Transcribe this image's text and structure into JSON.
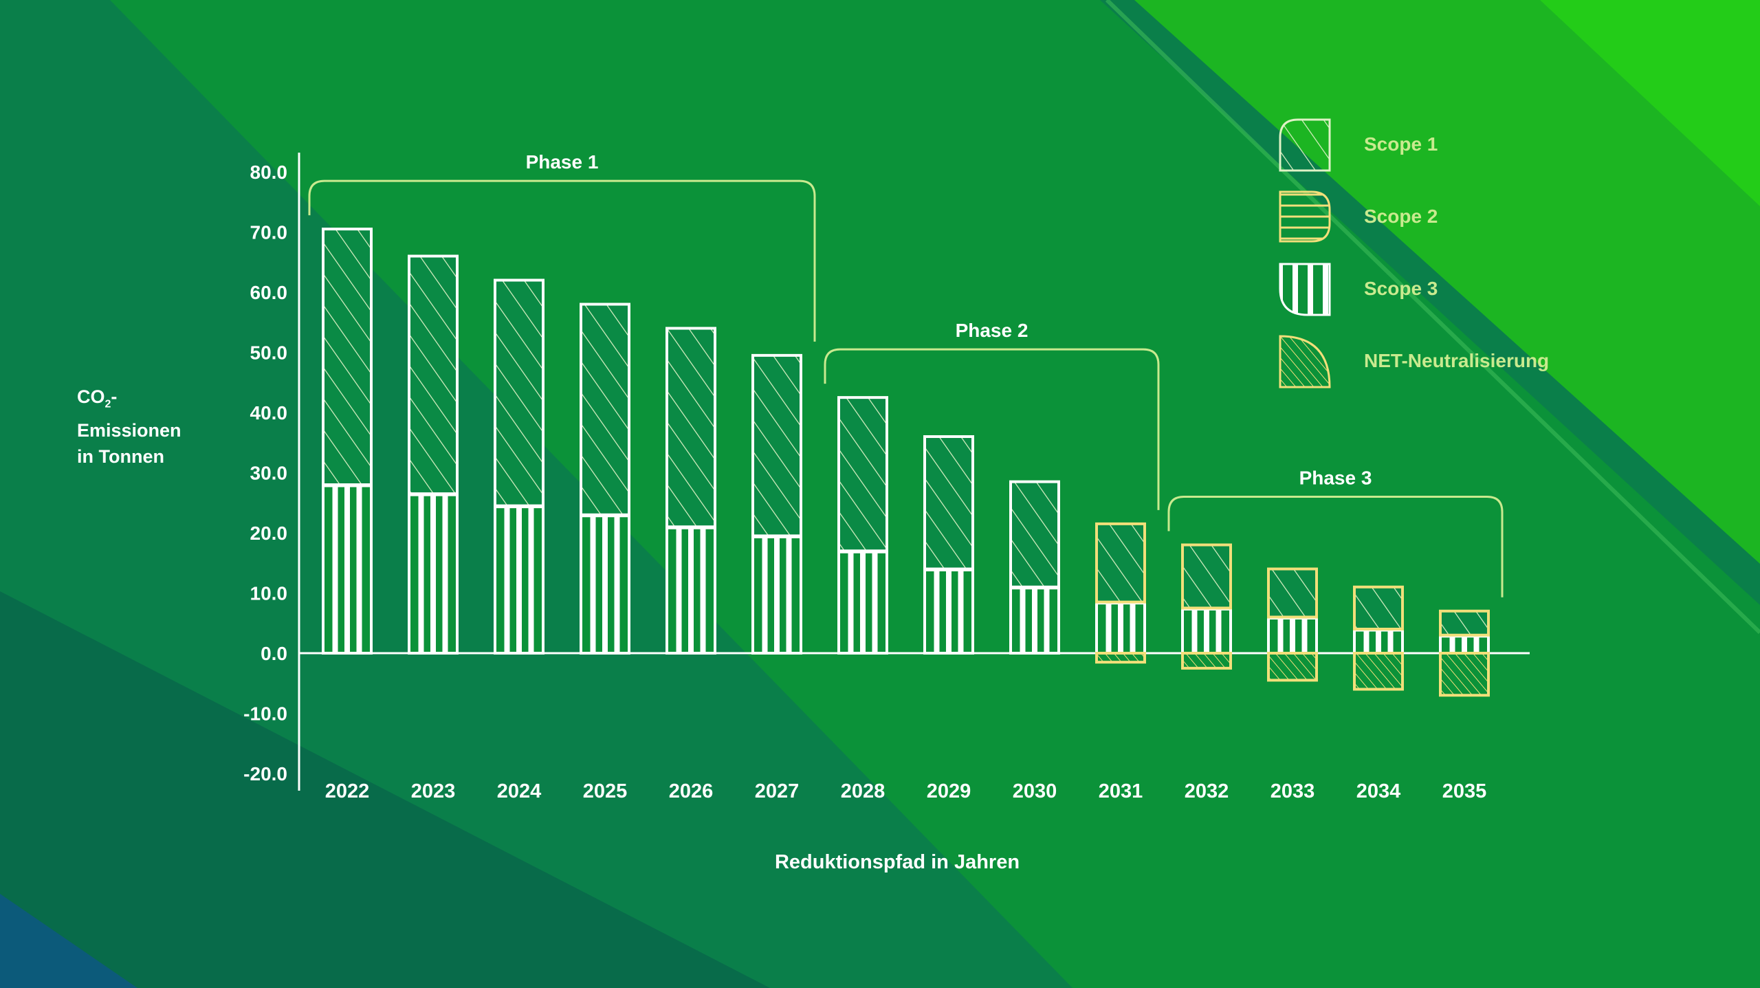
{
  "colors": {
    "bg_dark": "#0a7a4a",
    "bg_mid": "#0b9239",
    "bg_bright": "#1fc21b",
    "line_white": "#ffffff",
    "line_yellow": "#f2df7a",
    "legend_text": "#c9ea8f"
  },
  "chart_data": {
    "type": "bar",
    "stacked": true,
    "xlabel": "Reduktionspfad in Jahren",
    "ylabel_lines": [
      "CO₂-",
      "Emissionen",
      "in Tonnen"
    ],
    "ylim": [
      -20,
      80
    ],
    "yticks": [
      80,
      70,
      60,
      50,
      40,
      30,
      20,
      10,
      0,
      -10,
      -20
    ],
    "ytick_labels": [
      "80.0",
      "70.0",
      "60.0",
      "50.0",
      "40.0",
      "30.0",
      "20.0",
      "10.0",
      "0.0",
      "-10.0",
      "-20.0"
    ],
    "categories": [
      "2022",
      "2023",
      "2024",
      "2025",
      "2026",
      "2027",
      "2028",
      "2029",
      "2030",
      "2031",
      "2032",
      "2033",
      "2034",
      "2035"
    ],
    "series": [
      {
        "name": "Scope 3",
        "values": [
          28,
          26.5,
          24.5,
          23,
          21,
          19.5,
          17,
          14,
          11,
          8.5,
          7.5,
          6,
          4,
          3
        ]
      },
      {
        "name": "Scope 2",
        "values": [
          0,
          0,
          0,
          0,
          0,
          0,
          0,
          0,
          0,
          0,
          0,
          0,
          0,
          0
        ]
      },
      {
        "name": "Scope 1",
        "values": [
          42.5,
          39.5,
          37.5,
          35,
          33,
          30,
          25.5,
          22,
          17.5,
          13,
          10.5,
          8,
          7,
          4
        ]
      },
      {
        "name": "NET-Neutralisierung",
        "values": [
          0,
          0,
          0,
          0,
          0,
          0,
          0,
          0,
          0,
          -1.5,
          -2.5,
          -4.5,
          -6,
          -7
        ]
      }
    ],
    "phases": [
      {
        "label": "Phase 1",
        "from": "2022",
        "to": "2027"
      },
      {
        "label": "Phase 2",
        "from": "2028",
        "to": "2031"
      },
      {
        "label": "Phase 3",
        "from": "2032",
        "to": "2035"
      }
    ],
    "legend_position": "top-right",
    "grid": false
  },
  "legend": [
    {
      "label": "Scope 1",
      "pattern": "diagonal"
    },
    {
      "label": "Scope 2",
      "pattern": "horizontal"
    },
    {
      "label": "Scope 3",
      "pattern": "vertical"
    },
    {
      "label": "NET-Neutralisierung",
      "pattern": "dense-diagonal"
    }
  ]
}
